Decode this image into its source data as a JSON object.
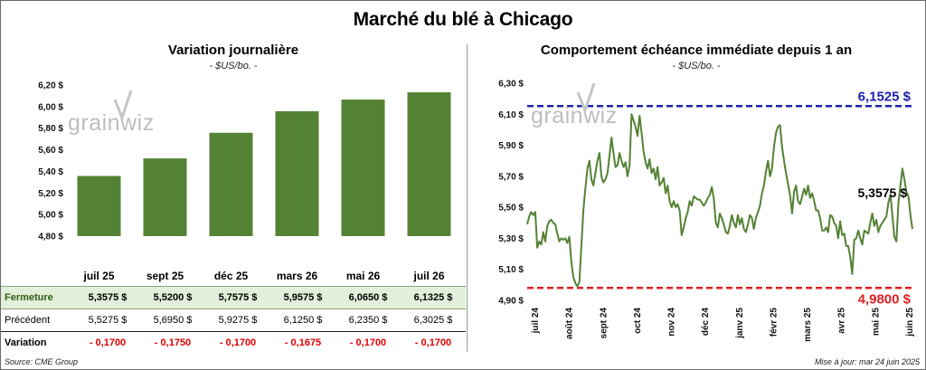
{
  "title": "Marché du blé à Chicago",
  "source": "Source: CME Group",
  "updated": "Mise à jour: mar 24 juin 2025",
  "watermark": "grainwiz",
  "colors": {
    "bar": "#548235",
    "line": "#548235",
    "high": "#2020b0",
    "low": "#e02020"
  },
  "chart_data": [
    {
      "type": "bar",
      "title": "Variation journalière",
      "unit": "- $US/bo. -",
      "categories": [
        "juil 25",
        "sept 25",
        "déc 25",
        "mars 26",
        "mai 26",
        "juil 26"
      ],
      "values": [
        5.3575,
        5.52,
        5.7575,
        5.9575,
        6.065,
        6.1325
      ],
      "ylim": [
        4.8,
        6.2
      ],
      "yticks": [
        "4,80 $",
        "5,00 $",
        "5,20 $",
        "5,40 $",
        "5,60 $",
        "5,80 $",
        "6,00 $",
        "6,20 $"
      ],
      "grid": false,
      "table": {
        "rows": [
          {
            "label": "Fermeture",
            "values": [
              "5,3575  $",
              "5,5200  $",
              "5,7575  $",
              "5,9575  $",
              "6,0650  $",
              "6,1325  $"
            ]
          },
          {
            "label": "Précédent",
            "values": [
              "5,5275  $",
              "5,6950  $",
              "5,9275  $",
              "6,1250  $",
              "6,2350  $",
              "6,3025  $"
            ]
          },
          {
            "label": "Variation",
            "values": [
              "- 0,1700",
              "- 0,1750",
              "- 0,1700",
              "- 0,1675",
              "- 0,1700",
              "- 0,1700"
            ]
          }
        ]
      }
    },
    {
      "type": "line",
      "title": "Comportement échéance immédiate depuis 1 an",
      "unit": "- $US/bo. -",
      "ylim": [
        4.9,
        6.3
      ],
      "yticks": [
        "4,90 $",
        "5,10 $",
        "5,30 $",
        "5,50 $",
        "5,70 $",
        "5,90 $",
        "6,10 $",
        "6,30 $"
      ],
      "xticks": [
        "juil 24",
        "août 24",
        "sept 24",
        "oct 24",
        "nov 24",
        "déc 24",
        "janv 25",
        "févr 25",
        "mars 25",
        "avr 25",
        "mai 25",
        "juin 25"
      ],
      "high": {
        "value": 6.1525,
        "label": "6,1525 $"
      },
      "low": {
        "value": 4.98,
        "label": "4,9800 $"
      },
      "last": {
        "value": 5.3575,
        "label": "5,3575 $"
      },
      "grid": false,
      "series": [
        {
          "values": [
            5.39,
            5.44,
            5.47,
            5.45,
            5.47,
            5.24,
            5.28,
            5.26,
            5.34,
            5.28,
            5.38,
            5.41,
            5.42,
            5.4,
            5.39,
            5.33,
            5.28,
            5.3,
            5.29,
            5.3,
            5.27,
            5.31,
            5.15,
            5.05,
            5.01,
            4.99,
            5.02,
            5.25,
            5.48,
            5.62,
            5.75,
            5.8,
            5.68,
            5.64,
            5.72,
            5.8,
            5.85,
            5.7,
            5.66,
            5.68,
            5.72,
            5.83,
            5.95,
            5.85,
            5.76,
            5.77,
            5.85,
            5.8,
            5.76,
            5.79,
            5.7,
            5.77,
            6.1,
            6.06,
            6.02,
            5.96,
            6.09,
            5.98,
            5.86,
            5.79,
            5.75,
            5.81,
            5.72,
            5.75,
            5.68,
            5.76,
            5.64,
            5.66,
            5.69,
            5.59,
            5.64,
            5.54,
            5.5,
            5.54,
            5.5,
            5.52,
            5.48,
            5.32,
            5.37,
            5.43,
            5.47,
            5.54,
            5.51,
            5.57,
            5.56,
            5.55,
            5.55,
            5.53,
            5.51,
            5.53,
            5.56,
            5.58,
            5.63,
            5.56,
            5.4,
            5.37,
            5.46,
            5.43,
            5.39,
            5.34,
            5.33,
            5.38,
            5.45,
            5.4,
            5.37,
            5.45,
            5.39,
            5.43,
            5.36,
            5.34,
            5.39,
            5.45,
            5.43,
            5.36,
            5.43,
            5.47,
            5.51,
            5.59,
            5.64,
            5.73,
            5.8,
            5.7,
            5.75,
            5.89,
            5.98,
            6.02,
            6.03,
            5.89,
            5.8,
            5.72,
            5.65,
            5.58,
            5.46,
            5.6,
            5.64,
            5.54,
            5.52,
            5.57,
            5.62,
            5.58,
            5.64,
            5.56,
            5.59,
            5.54,
            5.48,
            5.48,
            5.43,
            5.35,
            5.35,
            5.37,
            5.34,
            5.45,
            5.44,
            5.4,
            5.38,
            5.3,
            5.41,
            5.32,
            5.33,
            5.25,
            5.25,
            5.18,
            5.07,
            5.29,
            5.3,
            5.35,
            5.3,
            5.26,
            5.35,
            5.34,
            5.33,
            5.4,
            5.46,
            5.38,
            5.42,
            5.34,
            5.38,
            5.4,
            5.42,
            5.44,
            5.53,
            5.58,
            5.45,
            5.31,
            5.28,
            5.53,
            5.64,
            5.75,
            5.68,
            5.6,
            5.57,
            5.45,
            5.36
          ]
        }
      ]
    }
  ]
}
